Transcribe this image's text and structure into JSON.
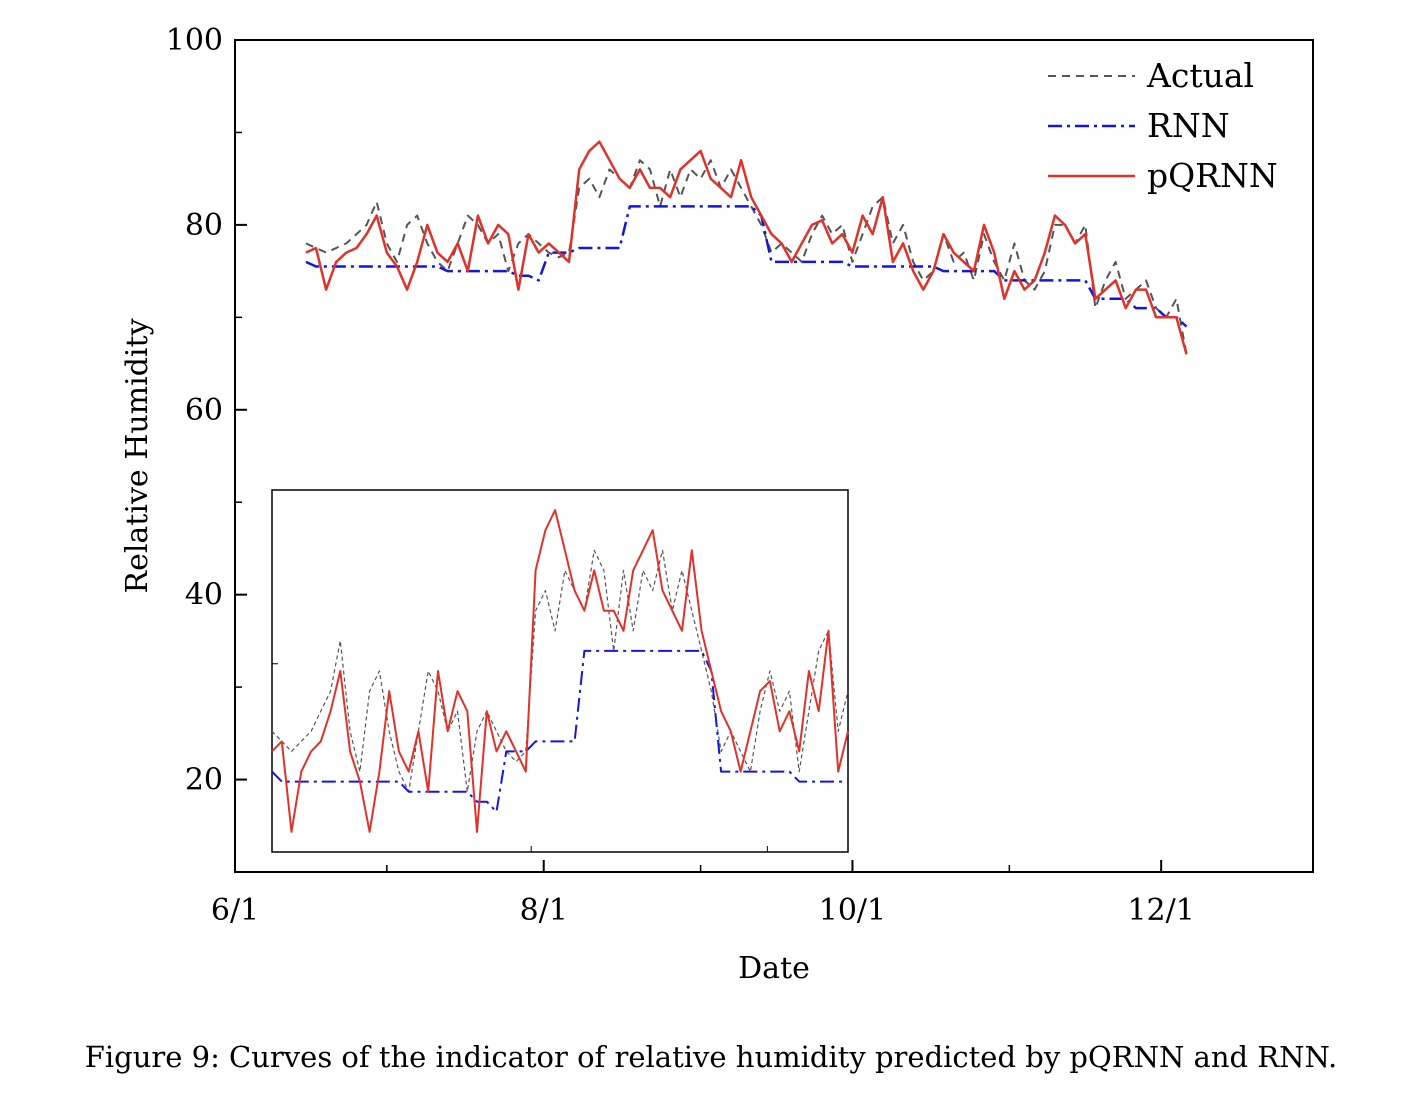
{
  "caption": "Figure 9: Curves of the indicator of relative humidity predicted by pQRNN and RNN.",
  "colors": {
    "actual": "#555555",
    "rnn": "#1515e0",
    "pqrnn": "#e03228",
    "axis": "#000000"
  },
  "chart_data": {
    "type": "line",
    "xlabel": "Date",
    "ylabel": "Relative Humidity",
    "x_ticks": [
      "6/1",
      "8/1",
      "10/1",
      "12/1"
    ],
    "x_tick_dates": [
      "2000-06-01",
      "2000-08-01",
      "2000-10-01",
      "2000-12-01"
    ],
    "xlim": [
      "2000-06-01",
      "2000-12-31"
    ],
    "y_ticks": [
      "20",
      "40",
      "60",
      "80",
      "100"
    ],
    "ylim": [
      10,
      100
    ],
    "grid": false,
    "legend": {
      "position": "top-right",
      "entries": [
        "Actual",
        "RNN",
        "pQRNN"
      ]
    },
    "series": [
      {
        "name": "Actual",
        "style": "dashed",
        "points": [
          [
            "06-15",
            78
          ],
          [
            "06-17",
            77.5
          ],
          [
            "06-19",
            77
          ],
          [
            "06-21",
            77.5
          ],
          [
            "06-23",
            78
          ],
          [
            "06-25",
            79
          ],
          [
            "06-27",
            80
          ],
          [
            "06-29",
            82.5
          ],
          [
            "07-01",
            78
          ],
          [
            "07-03",
            76
          ],
          [
            "07-05",
            80
          ],
          [
            "07-07",
            81
          ],
          [
            "07-09",
            78
          ],
          [
            "07-11",
            76
          ],
          [
            "07-13",
            75
          ],
          [
            "07-15",
            78
          ],
          [
            "07-17",
            81
          ],
          [
            "07-19",
            80
          ],
          [
            "07-21",
            78
          ],
          [
            "07-23",
            79
          ],
          [
            "07-25",
            75
          ],
          [
            "07-27",
            78
          ],
          [
            "07-29",
            79
          ],
          [
            "07-31",
            78
          ],
          [
            "08-02",
            77
          ],
          [
            "08-04",
            76.5
          ],
          [
            "08-06",
            77
          ],
          [
            "08-08",
            84
          ],
          [
            "08-10",
            85
          ],
          [
            "08-12",
            83
          ],
          [
            "08-14",
            86
          ],
          [
            "08-16",
            85
          ],
          [
            "08-18",
            84
          ],
          [
            "08-20",
            87
          ],
          [
            "08-22",
            86
          ],
          [
            "08-24",
            82
          ],
          [
            "08-26",
            86
          ],
          [
            "08-28",
            83
          ],
          [
            "08-30",
            86
          ],
          [
            "09-01",
            85
          ],
          [
            "09-03",
            87
          ],
          [
            "09-05",
            84
          ],
          [
            "09-07",
            86
          ],
          [
            "09-09",
            84
          ],
          [
            "09-11",
            82
          ],
          [
            "09-13",
            80
          ],
          [
            "09-15",
            77
          ],
          [
            "09-17",
            78
          ],
          [
            "09-19",
            77
          ],
          [
            "09-21",
            76
          ],
          [
            "09-23",
            79
          ],
          [
            "09-25",
            81
          ],
          [
            "09-27",
            79
          ],
          [
            "09-29",
            80
          ],
          [
            "10-01",
            76
          ],
          [
            "10-03",
            79
          ],
          [
            "10-05",
            82
          ],
          [
            "10-07",
            83
          ],
          [
            "10-09",
            78
          ],
          [
            "10-11",
            80
          ],
          [
            "10-13",
            76
          ],
          [
            "10-15",
            74
          ],
          [
            "10-17",
            75
          ],
          [
            "10-19",
            79
          ],
          [
            "10-21",
            76
          ],
          [
            "10-23",
            77
          ],
          [
            "10-25",
            74
          ],
          [
            "10-27",
            79
          ],
          [
            "10-29",
            76
          ],
          [
            "10-31",
            74
          ],
          [
            "11-02",
            78
          ],
          [
            "11-04",
            74
          ],
          [
            "11-06",
            73
          ],
          [
            "11-08",
            75
          ],
          [
            "11-10",
            80
          ],
          [
            "11-12",
            80
          ],
          [
            "11-14",
            78
          ],
          [
            "11-16",
            80
          ],
          [
            "11-18",
            71
          ],
          [
            "11-20",
            74
          ],
          [
            "11-22",
            76
          ],
          [
            "11-24",
            72
          ],
          [
            "11-26",
            73
          ],
          [
            "11-28",
            74
          ],
          [
            "11-30",
            71
          ],
          [
            "12-02",
            70
          ],
          [
            "12-04",
            72
          ],
          [
            "12-06",
            66
          ]
        ]
      },
      {
        "name": "RNN",
        "style": "dashdot",
        "points": [
          [
            "06-15",
            76
          ],
          [
            "06-17",
            75.5
          ],
          [
            "06-19",
            75.5
          ],
          [
            "06-21",
            75.5
          ],
          [
            "06-23",
            75.5
          ],
          [
            "06-25",
            75.5
          ],
          [
            "06-27",
            75.5
          ],
          [
            "06-29",
            75.5
          ],
          [
            "07-01",
            75.5
          ],
          [
            "07-03",
            75.5
          ],
          [
            "07-05",
            75.5
          ],
          [
            "07-07",
            75.5
          ],
          [
            "07-09",
            75.5
          ],
          [
            "07-11",
            75.5
          ],
          [
            "07-13",
            75
          ],
          [
            "07-15",
            75
          ],
          [
            "07-17",
            75
          ],
          [
            "07-19",
            75
          ],
          [
            "07-21",
            75
          ],
          [
            "07-23",
            75
          ],
          [
            "07-25",
            75
          ],
          [
            "07-27",
            74.5
          ],
          [
            "07-29",
            74.5
          ],
          [
            "07-31",
            74
          ],
          [
            "08-02",
            77
          ],
          [
            "08-04",
            77
          ],
          [
            "08-06",
            77
          ],
          [
            "08-08",
            77.5
          ],
          [
            "08-10",
            77.5
          ],
          [
            "08-12",
            77.5
          ],
          [
            "08-14",
            77.5
          ],
          [
            "08-16",
            77.5
          ],
          [
            "08-18",
            82
          ],
          [
            "08-20",
            82
          ],
          [
            "08-22",
            82
          ],
          [
            "08-24",
            82
          ],
          [
            "08-26",
            82
          ],
          [
            "08-28",
            82
          ],
          [
            "08-30",
            82
          ],
          [
            "09-01",
            82
          ],
          [
            "09-03",
            82
          ],
          [
            "09-05",
            82
          ],
          [
            "09-07",
            82
          ],
          [
            "09-09",
            82
          ],
          [
            "09-11",
            82
          ],
          [
            "09-13",
            81
          ],
          [
            "09-15",
            76
          ],
          [
            "09-17",
            76
          ],
          [
            "09-19",
            76
          ],
          [
            "09-21",
            76
          ],
          [
            "09-23",
            76
          ],
          [
            "09-25",
            76
          ],
          [
            "09-27",
            76
          ],
          [
            "09-29",
            76
          ],
          [
            "10-01",
            75.5
          ],
          [
            "10-03",
            75.5
          ],
          [
            "10-05",
            75.5
          ],
          [
            "10-07",
            75.5
          ],
          [
            "10-09",
            75.5
          ],
          [
            "10-11",
            75.5
          ],
          [
            "10-13",
            75.5
          ],
          [
            "10-15",
            75.5
          ],
          [
            "10-17",
            75.5
          ],
          [
            "10-19",
            75
          ],
          [
            "10-21",
            75
          ],
          [
            "10-23",
            75
          ],
          [
            "10-25",
            75
          ],
          [
            "10-27",
            75
          ],
          [
            "10-29",
            75
          ],
          [
            "10-31",
            74
          ],
          [
            "11-02",
            74
          ],
          [
            "11-04",
            74
          ],
          [
            "11-06",
            74
          ],
          [
            "11-08",
            74
          ],
          [
            "11-10",
            74
          ],
          [
            "11-12",
            74
          ],
          [
            "11-14",
            74
          ],
          [
            "11-16",
            74
          ],
          [
            "11-18",
            72
          ],
          [
            "11-20",
            72
          ],
          [
            "11-22",
            72
          ],
          [
            "11-24",
            72
          ],
          [
            "11-26",
            71
          ],
          [
            "11-28",
            71
          ],
          [
            "11-30",
            71
          ],
          [
            "12-02",
            70
          ],
          [
            "12-04",
            70
          ],
          [
            "12-06",
            69
          ]
        ]
      },
      {
        "name": "pQRNN",
        "style": "solid",
        "points": [
          [
            "06-15",
            77
          ],
          [
            "06-17",
            77.5
          ],
          [
            "06-19",
            73
          ],
          [
            "06-21",
            76
          ],
          [
            "06-23",
            77
          ],
          [
            "06-25",
            77.5
          ],
          [
            "06-27",
            79
          ],
          [
            "06-29",
            81
          ],
          [
            "07-01",
            77
          ],
          [
            "07-03",
            75.5
          ],
          [
            "07-05",
            73
          ],
          [
            "07-07",
            76
          ],
          [
            "07-09",
            80
          ],
          [
            "07-11",
            77
          ],
          [
            "07-13",
            76
          ],
          [
            "07-15",
            78
          ],
          [
            "07-17",
            75
          ],
          [
            "07-19",
            81
          ],
          [
            "07-21",
            78
          ],
          [
            "07-23",
            80
          ],
          [
            "07-25",
            79
          ],
          [
            "07-27",
            73
          ],
          [
            "07-29",
            79
          ],
          [
            "07-31",
            77
          ],
          [
            "08-02",
            78
          ],
          [
            "08-04",
            77
          ],
          [
            "08-06",
            76
          ],
          [
            "08-08",
            86
          ],
          [
            "08-10",
            88
          ],
          [
            "08-12",
            89
          ],
          [
            "08-14",
            87
          ],
          [
            "08-16",
            85
          ],
          [
            "08-18",
            84
          ],
          [
            "08-20",
            86
          ],
          [
            "08-22",
            84
          ],
          [
            "08-24",
            84
          ],
          [
            "08-26",
            83
          ],
          [
            "08-28",
            86
          ],
          [
            "08-30",
            87
          ],
          [
            "09-01",
            88
          ],
          [
            "09-03",
            85
          ],
          [
            "09-05",
            84
          ],
          [
            "09-07",
            83
          ],
          [
            "09-09",
            87
          ],
          [
            "09-11",
            83
          ],
          [
            "09-13",
            81
          ],
          [
            "09-15",
            79
          ],
          [
            "09-17",
            78
          ],
          [
            "09-19",
            76
          ],
          [
            "09-21",
            78
          ],
          [
            "09-23",
            80
          ],
          [
            "09-25",
            80.5
          ],
          [
            "09-27",
            78
          ],
          [
            "09-29",
            79
          ],
          [
            "10-01",
            77
          ],
          [
            "10-03",
            81
          ],
          [
            "10-05",
            79
          ],
          [
            "10-07",
            83
          ],
          [
            "10-09",
            76
          ],
          [
            "10-11",
            78
          ],
          [
            "10-13",
            75
          ],
          [
            "10-15",
            73
          ],
          [
            "10-17",
            75
          ],
          [
            "10-19",
            79
          ],
          [
            "10-21",
            77
          ],
          [
            "10-23",
            76
          ],
          [
            "10-25",
            75
          ],
          [
            "10-27",
            80
          ],
          [
            "10-29",
            77
          ],
          [
            "10-31",
            72
          ],
          [
            "11-02",
            75
          ],
          [
            "11-04",
            73
          ],
          [
            "11-06",
            74
          ],
          [
            "11-08",
            77
          ],
          [
            "11-10",
            81
          ],
          [
            "11-12",
            80
          ],
          [
            "11-14",
            78
          ],
          [
            "11-16",
            79
          ],
          [
            "11-18",
            72
          ],
          [
            "11-20",
            73
          ],
          [
            "11-22",
            74
          ],
          [
            "11-24",
            71
          ],
          [
            "11-26",
            73
          ],
          [
            "11-28",
            73
          ],
          [
            "11-30",
            70
          ],
          [
            "12-02",
            70
          ],
          [
            "12-04",
            70
          ],
          [
            "12-06",
            66
          ]
        ]
      }
    ],
    "inset": {
      "description": "zoomed view of the first part of the series",
      "grid": false
    }
  }
}
